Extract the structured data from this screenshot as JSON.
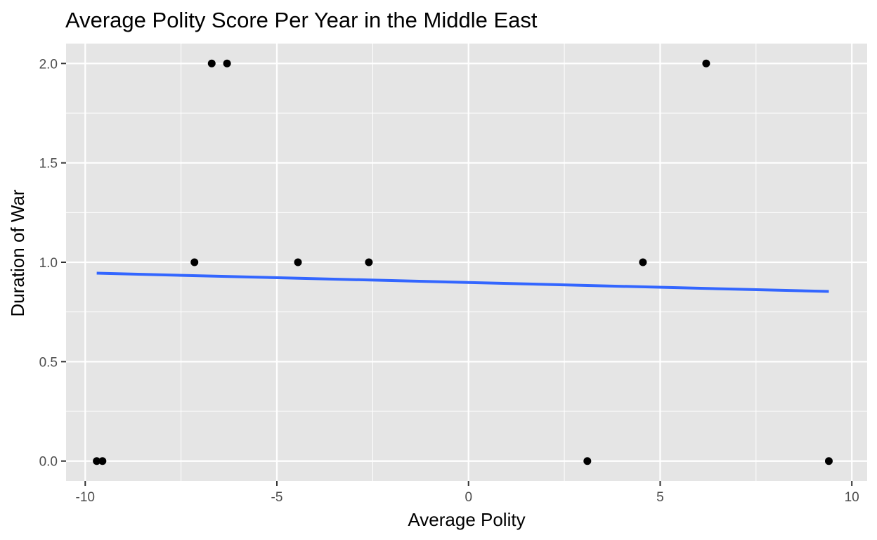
{
  "chart_data": {
    "type": "scatter",
    "title": "Average Polity Score Per Year in the Middle East",
    "xlabel": "Average Polity",
    "ylabel": "Duration of War",
    "xlim": [
      -10.5,
      10.4
    ],
    "ylim": [
      -0.1,
      2.1
    ],
    "x_ticks": [
      -10,
      -5,
      0,
      5,
      10
    ],
    "x_tick_labels": [
      "-10",
      "-5",
      "0",
      "5",
      "10"
    ],
    "y_ticks": [
      0.0,
      0.5,
      1.0,
      1.5,
      2.0
    ],
    "y_tick_labels": [
      "0.0",
      "0.5",
      "1.0",
      "1.5",
      "2.0"
    ],
    "grid": true,
    "points": [
      {
        "x": -9.7,
        "y": 0
      },
      {
        "x": -9.55,
        "y": 0
      },
      {
        "x": -7.15,
        "y": 1
      },
      {
        "x": -6.7,
        "y": 2
      },
      {
        "x": -6.3,
        "y": 2
      },
      {
        "x": -4.45,
        "y": 1
      },
      {
        "x": -2.6,
        "y": 1
      },
      {
        "x": 3.1,
        "y": 0
      },
      {
        "x": 4.55,
        "y": 1
      },
      {
        "x": 6.2,
        "y": 2
      },
      {
        "x": 9.4,
        "y": 0
      }
    ],
    "trend_line": {
      "method": "linear",
      "x": [
        -9.7,
        9.4
      ],
      "y": [
        0.945,
        0.853
      ]
    },
    "colors": {
      "panel_background": "#e5e5e5",
      "grid_major": "#ffffff",
      "point": "#000000",
      "trend_line": "#3366ff"
    }
  }
}
